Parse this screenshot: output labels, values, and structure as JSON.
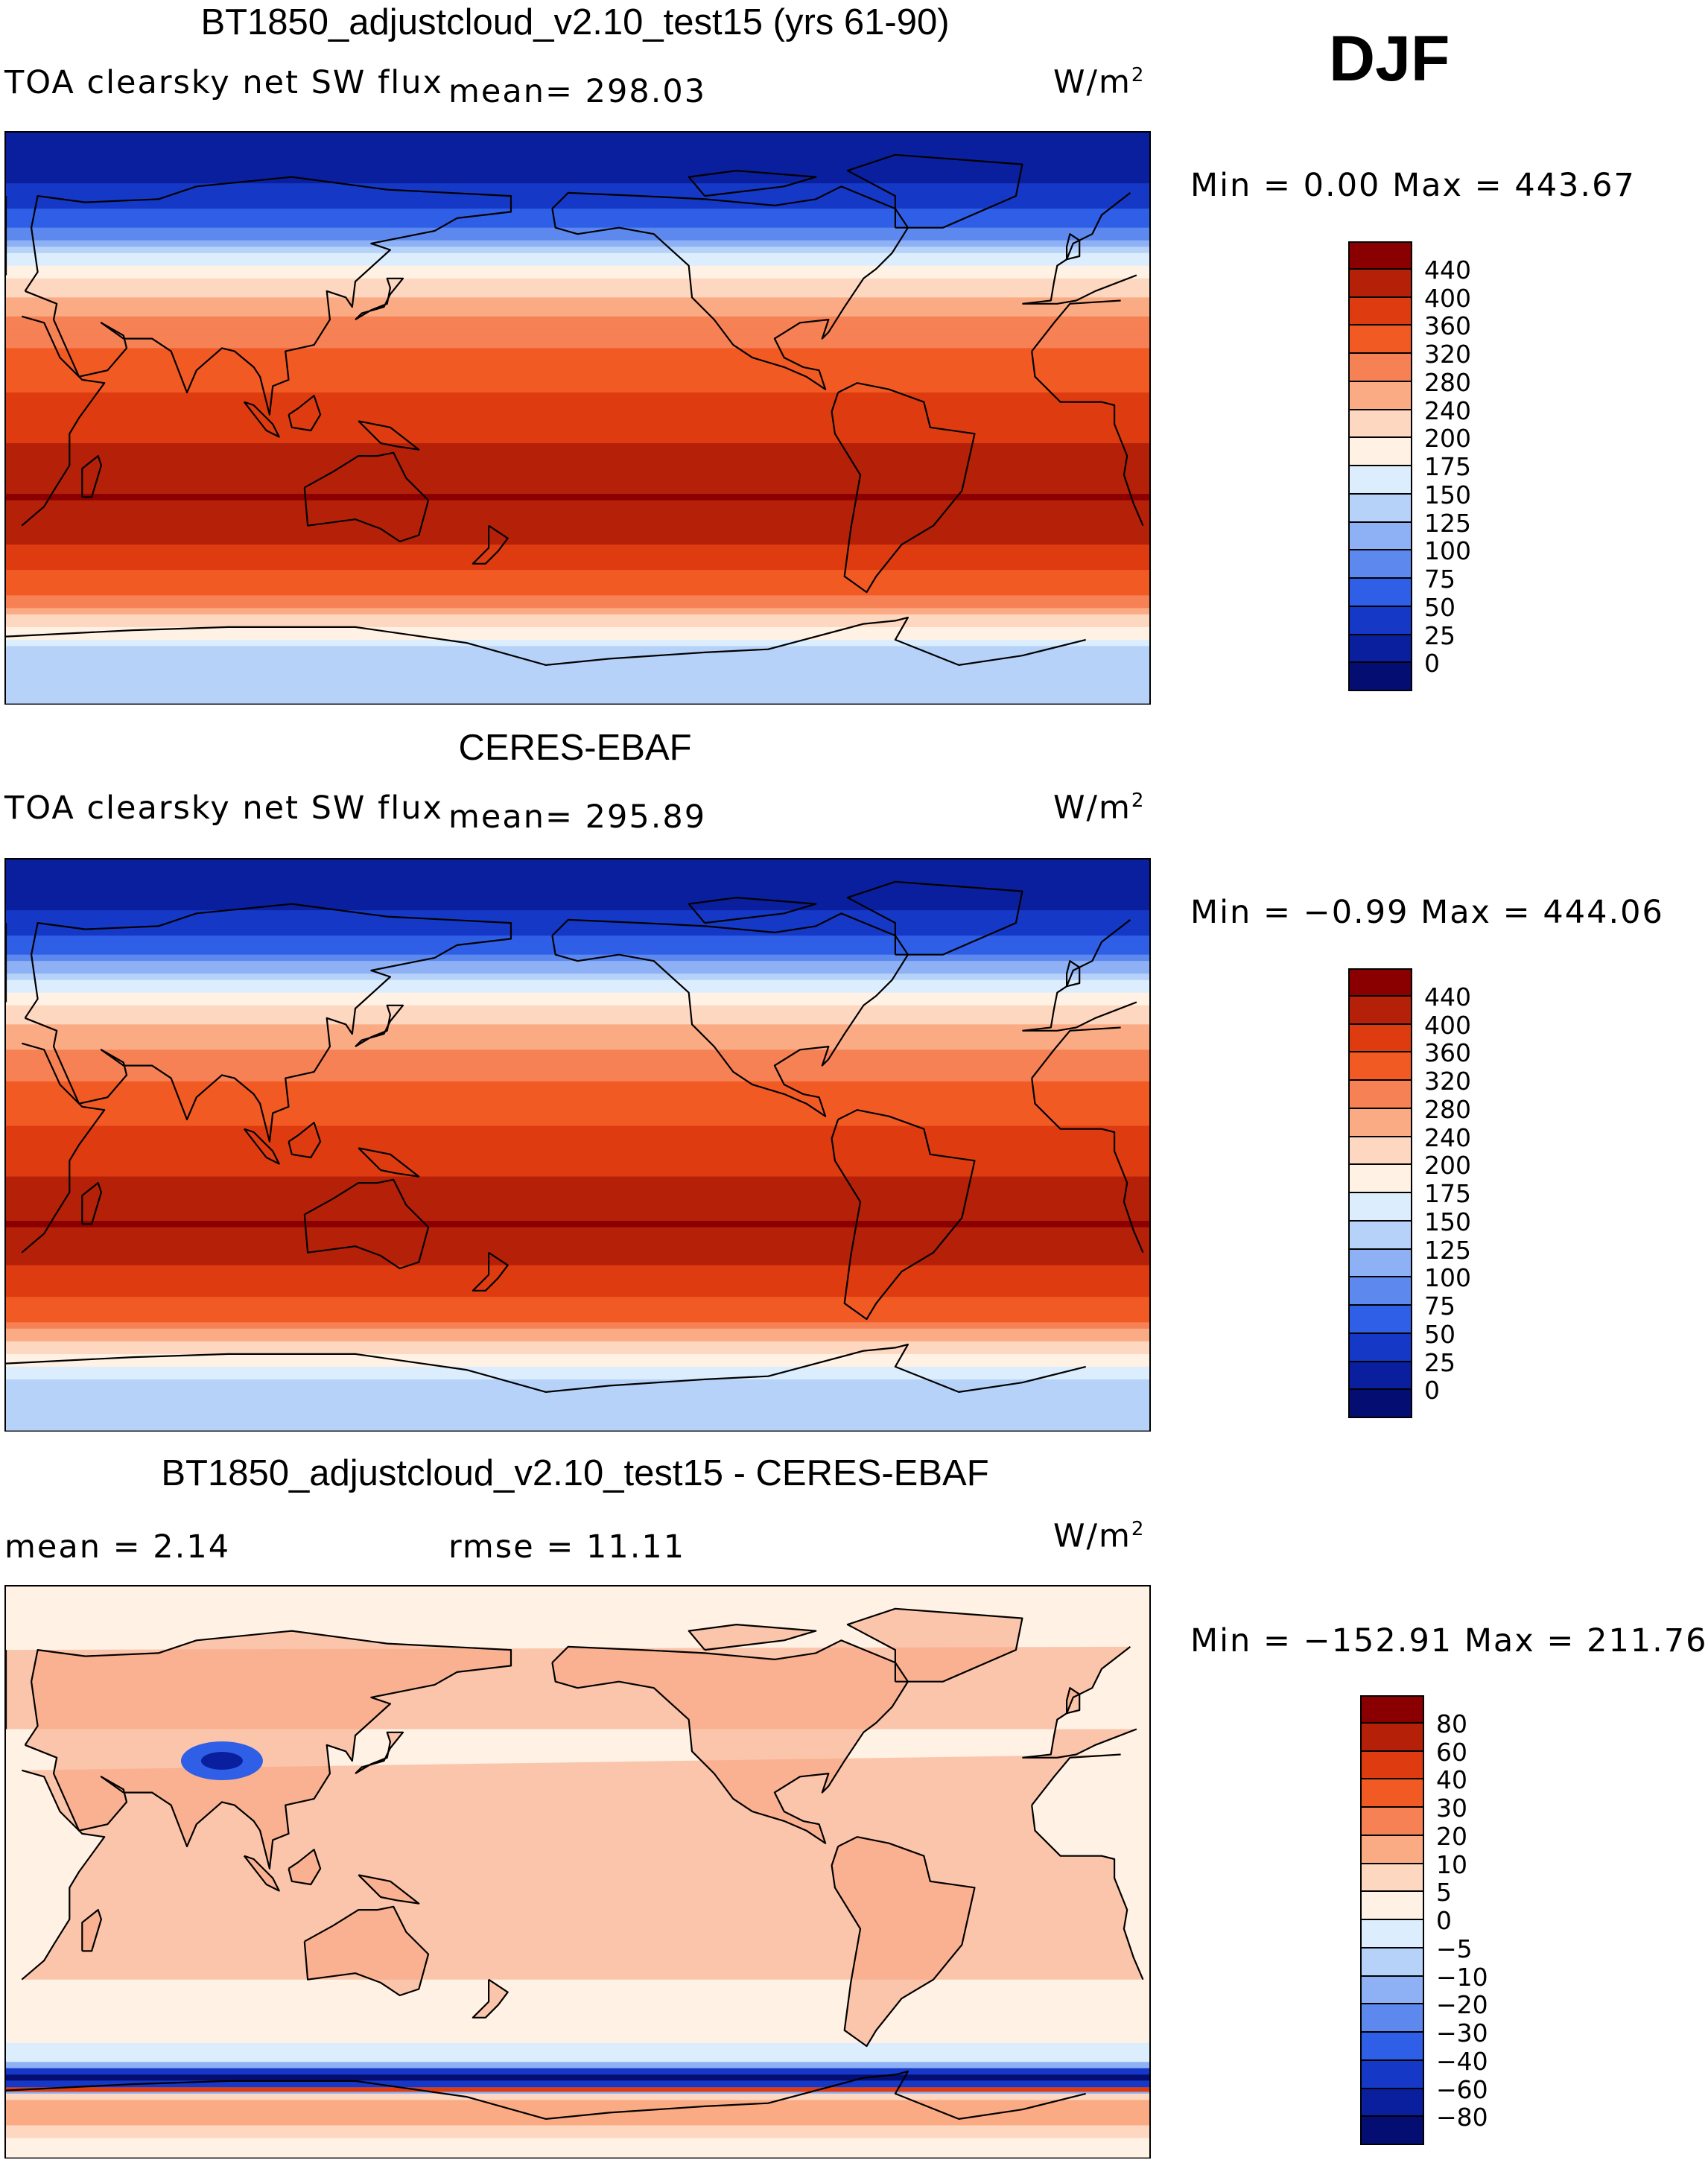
{
  "season": "DJF",
  "units_prefix": "W/m",
  "units_exp": "2",
  "panels": [
    {
      "title": "BT1850_adjustcloud_v2.10_test15 (yrs 61-90)",
      "variable": "TOA clearsky net SW flux",
      "stat1": "mean= 298.03",
      "stat2": "",
      "minmax": "Min =   0.00 Max = 443.67",
      "colorbar": {
        "labels": [
          "440",
          "400",
          "360",
          "320",
          "280",
          "240",
          "200",
          "175",
          "150",
          "125",
          "100",
          "75",
          "50",
          "25",
          "0"
        ],
        "colors": [
          "#8a0000",
          "#b52008",
          "#de3c10",
          "#f25a24",
          "#f68154",
          "#fbab84",
          "#fdd7c0",
          "#fff2e4",
          "#dceefe",
          "#b6d2f9",
          "#8eb0f4",
          "#5d89ee",
          "#2e5fe6",
          "#1538c6",
          "#0a1f9e",
          "#040e72"
        ]
      },
      "chart_data": {
        "type": "heatmap",
        "title": "BT1850_adjustcloud_v2.10_test15 (yrs 61-90)",
        "variable": "TOA clearsky net SW flux",
        "units": "W/m2",
        "mean": 298.03,
        "min": 0.0,
        "max": 443.67,
        "levels": [
          0,
          25,
          50,
          75,
          100,
          125,
          150,
          175,
          200,
          240,
          280,
          320,
          360,
          400,
          440
        ],
        "lat_profile": [
          {
            "lat": 90,
            "value": 0
          },
          {
            "lat": 75,
            "value": 20
          },
          {
            "lat": 60,
            "value": 70
          },
          {
            "lat": 50,
            "value": 160
          },
          {
            "lat": 40,
            "value": 230
          },
          {
            "lat": 30,
            "value": 290
          },
          {
            "lat": 15,
            "value": 345
          },
          {
            "lat": 0,
            "value": 380
          },
          {
            "lat": -15,
            "value": 415
          },
          {
            "lat": -25,
            "value": 440
          },
          {
            "lat": -40,
            "value": 400
          },
          {
            "lat": -55,
            "value": 330
          },
          {
            "lat": -65,
            "value": 210
          },
          {
            "lat": -75,
            "value": 130
          },
          {
            "lat": -90,
            "value": 125
          }
        ]
      }
    },
    {
      "title": "CERES-EBAF",
      "variable": "TOA clearsky net SW flux",
      "stat1": "mean= 295.89",
      "stat2": "",
      "minmax": "Min =  −0.99 Max = 444.06",
      "colorbar": {
        "labels": [
          "440",
          "400",
          "360",
          "320",
          "280",
          "240",
          "200",
          "175",
          "150",
          "125",
          "100",
          "75",
          "50",
          "25",
          "0"
        ],
        "colors": [
          "#8a0000",
          "#b52008",
          "#de3c10",
          "#f25a24",
          "#f68154",
          "#fbab84",
          "#fdd7c0",
          "#fff2e4",
          "#dceefe",
          "#b6d2f9",
          "#8eb0f4",
          "#5d89ee",
          "#2e5fe6",
          "#1538c6",
          "#0a1f9e",
          "#040e72"
        ]
      },
      "chart_data": {
        "type": "heatmap",
        "title": "CERES-EBAF",
        "variable": "TOA clearsky net SW flux",
        "units": "W/m2",
        "mean": 295.89,
        "min": -0.99,
        "max": 444.06,
        "levels": [
          0,
          25,
          50,
          75,
          100,
          125,
          150,
          175,
          200,
          240,
          280,
          320,
          360,
          400,
          440
        ],
        "lat_profile": [
          {
            "lat": 90,
            "value": 0
          },
          {
            "lat": 75,
            "value": 20
          },
          {
            "lat": 60,
            "value": 75
          },
          {
            "lat": 50,
            "value": 160
          },
          {
            "lat": 40,
            "value": 230
          },
          {
            "lat": 30,
            "value": 285
          },
          {
            "lat": 15,
            "value": 340
          },
          {
            "lat": 0,
            "value": 375
          },
          {
            "lat": -15,
            "value": 410
          },
          {
            "lat": -25,
            "value": 440
          },
          {
            "lat": -40,
            "value": 395
          },
          {
            "lat": -55,
            "value": 320
          },
          {
            "lat": -65,
            "value": 200
          },
          {
            "lat": -75,
            "value": 140
          },
          {
            "lat": -90,
            "value": 130
          }
        ]
      }
    },
    {
      "title": "BT1850_adjustcloud_v2.10_test15 - CERES-EBAF",
      "variable": "mean =    2.14",
      "stat1": "rmse =   11.11",
      "stat2": "",
      "minmax": "Min = −152.91 Max = 211.76",
      "colorbar": {
        "labels": [
          "80",
          "60",
          "40",
          "30",
          "20",
          "10",
          "5",
          "0",
          "−5",
          "−10",
          "−20",
          "−30",
          "−40",
          "−60",
          "−80"
        ],
        "colors": [
          "#8a0000",
          "#b52008",
          "#de3c10",
          "#f25a24",
          "#f68154",
          "#fbab84",
          "#fdd7c0",
          "#fff2e4",
          "#dceefe",
          "#b6d2f9",
          "#8eb0f4",
          "#5d89ee",
          "#2e5fe6",
          "#1538c6",
          "#0a1f9e",
          "#040e72"
        ]
      },
      "chart_data": {
        "type": "heatmap",
        "title": "BT1850_adjustcloud_v2.10_test15 - CERES-EBAF",
        "units": "W/m2",
        "mean": 2.14,
        "rmse": 11.11,
        "min": -152.91,
        "max": 211.76,
        "levels": [
          -80,
          -60,
          -40,
          -30,
          -20,
          -10,
          -5,
          0,
          5,
          10,
          20,
          30,
          40,
          60,
          80
        ],
        "lat_profile": [
          {
            "lat": 90,
            "value": 2
          },
          {
            "lat": 70,
            "value": 3
          },
          {
            "lat": 50,
            "value": 4
          },
          {
            "lat": 30,
            "value": 3
          },
          {
            "lat": 10,
            "value": 2
          },
          {
            "lat": -10,
            "value": 2
          },
          {
            "lat": -30,
            "value": 3
          },
          {
            "lat": -50,
            "value": 2
          },
          {
            "lat": -60,
            "value": -3
          },
          {
            "lat": -66,
            "value": -60
          },
          {
            "lat": -72,
            "value": 20
          },
          {
            "lat": -85,
            "value": 3
          }
        ]
      }
    }
  ]
}
